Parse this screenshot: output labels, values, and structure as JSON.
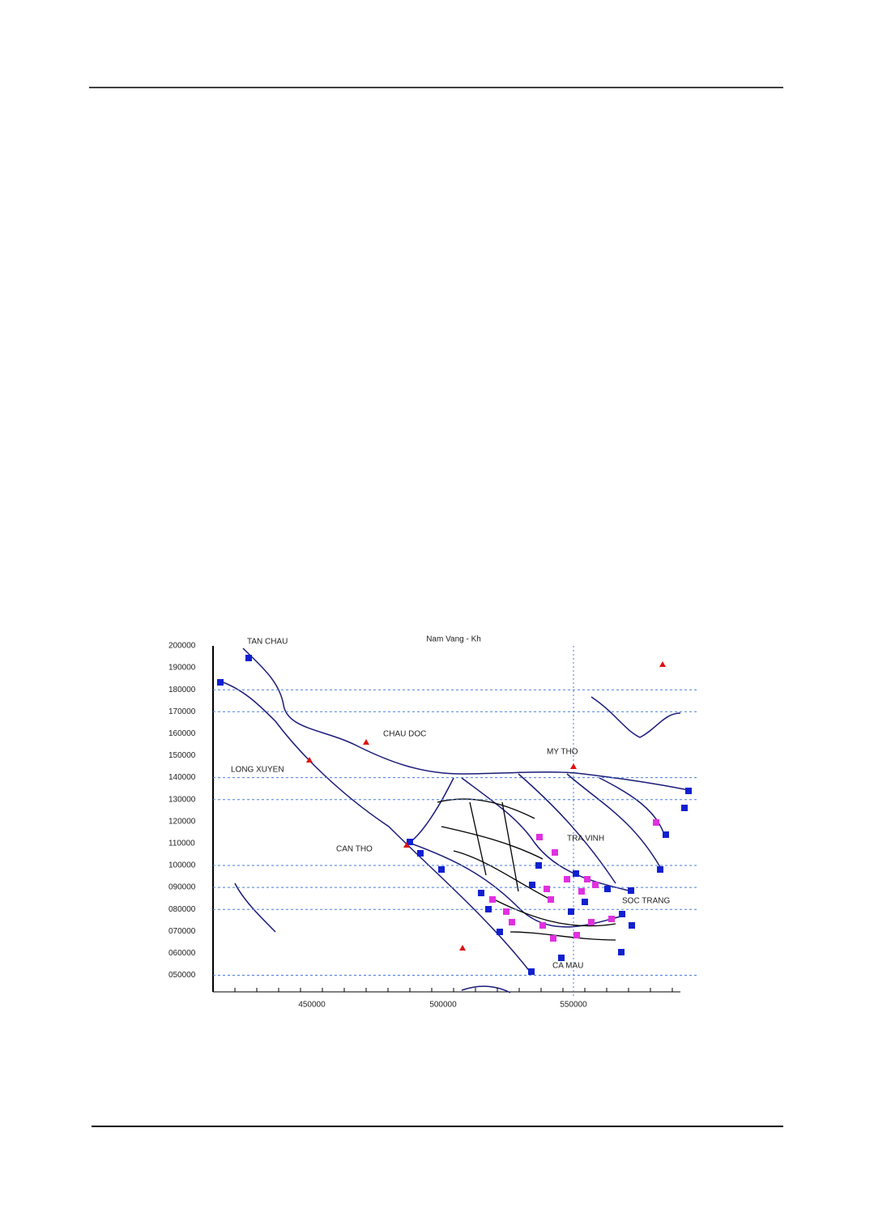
{
  "figure": {
    "title": "Nam Vang - Kh",
    "y_labels": [
      "200000",
      "190000",
      "180000",
      "170000",
      "160000",
      "150000",
      "140000",
      "130000",
      "120000",
      "110000",
      "100000",
      "090000",
      "080000",
      "070000",
      "060000",
      "050000"
    ],
    "x_labels": [
      "450000",
      "500000",
      "550000"
    ],
    "places": [
      "TAN CHAU",
      "CHAU DOC",
      "LONG XUYEN",
      "MY THO",
      "CAN THO",
      "TRA VINH",
      "SOC TRANG",
      "CA MAU"
    ]
  }
}
